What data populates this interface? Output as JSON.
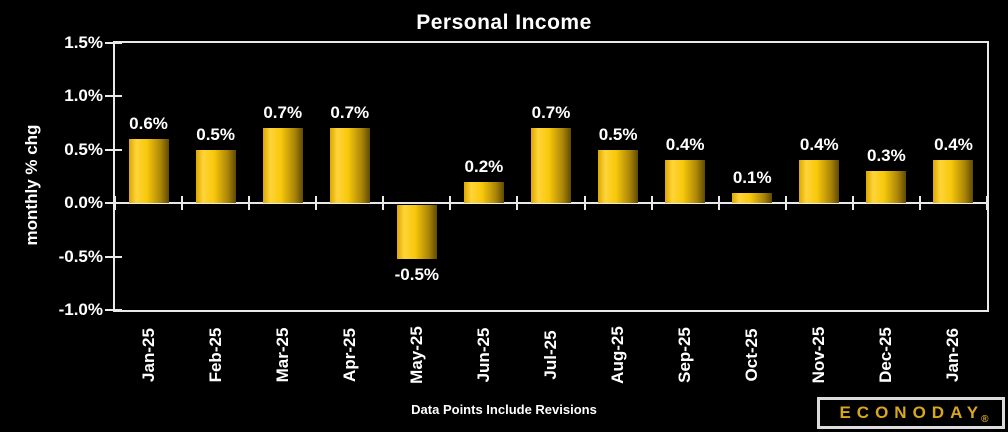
{
  "chart_data": {
    "type": "bar",
    "title": "Personal Income",
    "xlabel": "",
    "ylabel": "monthly % chg",
    "categories": [
      "Jan-25",
      "Feb-25",
      "Mar-25",
      "Apr-25",
      "May-25",
      "Jun-25",
      "Jul-25",
      "Aug-25",
      "Sep-25",
      "Oct-25",
      "Nov-25",
      "Dec-25",
      "Jan-26"
    ],
    "values": [
      0.6,
      0.5,
      0.7,
      0.7,
      -0.5,
      0.2,
      0.7,
      0.5,
      0.4,
      0.1,
      0.4,
      0.3,
      0.4
    ],
    "bar_labels": [
      "0.6%",
      "0.5%",
      "0.7%",
      "0.7%",
      "-0.5%",
      "0.2%",
      "0.7%",
      "0.5%",
      "0.4%",
      "0.1%",
      "0.4%",
      "0.3%",
      "0.4%"
    ],
    "ylim": [
      -1.0,
      1.5
    ],
    "y_ticks": [
      {
        "label": "1.5%",
        "value": 1.5
      },
      {
        "label": "1.0%",
        "value": 1.0
      },
      {
        "label": "0.5%",
        "value": 0.5
      },
      {
        "label": "0.0%",
        "value": 0.0
      },
      {
        "label": "-0.5%",
        "value": -0.5
      },
      {
        "label": "-1.0%",
        "value": -1.0
      }
    ],
    "grid": false,
    "legend": null
  },
  "footer": {
    "note": "Data Points Include Revisions"
  },
  "logo": {
    "text": "ECONODAY",
    "registered": "®"
  },
  "colors": {
    "background": "#000000",
    "text": "#ffffff",
    "axis": "#e9e9e9",
    "bar_gradient": [
      "#dca700",
      "#ffd43a",
      "#f8c80a",
      "#a98409",
      "#5e4a02"
    ],
    "logo_gold": "#d8a71e",
    "logo_border": "#dcdcdc"
  }
}
